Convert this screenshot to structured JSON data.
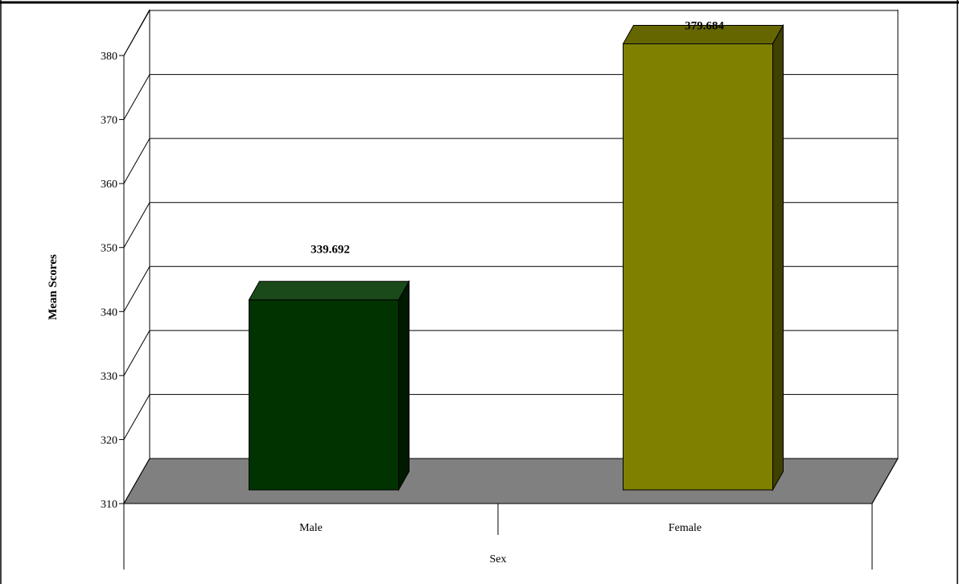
{
  "chart_data": {
    "type": "bar",
    "categories": [
      "Male",
      "Female"
    ],
    "values": [
      339.692,
      379.684
    ],
    "data_labels": [
      "339.692",
      "379.684"
    ],
    "title": "",
    "xlabel": "Sex",
    "ylabel": "Mean Scores",
    "ylim": [
      310,
      380
    ],
    "yticks": [
      310,
      320,
      330,
      340,
      350,
      360,
      370,
      380
    ],
    "grid": true,
    "legend": "none",
    "three_d": true,
    "colors": {
      "bars": [
        "#003300",
        "#808000"
      ],
      "bar_tops": [
        "#1a4a1a",
        "#666600"
      ],
      "bar_sides": [
        "#001a00",
        "#404000"
      ],
      "floor": "#808080",
      "gridlines": "#000000",
      "frame": "#000000"
    }
  }
}
